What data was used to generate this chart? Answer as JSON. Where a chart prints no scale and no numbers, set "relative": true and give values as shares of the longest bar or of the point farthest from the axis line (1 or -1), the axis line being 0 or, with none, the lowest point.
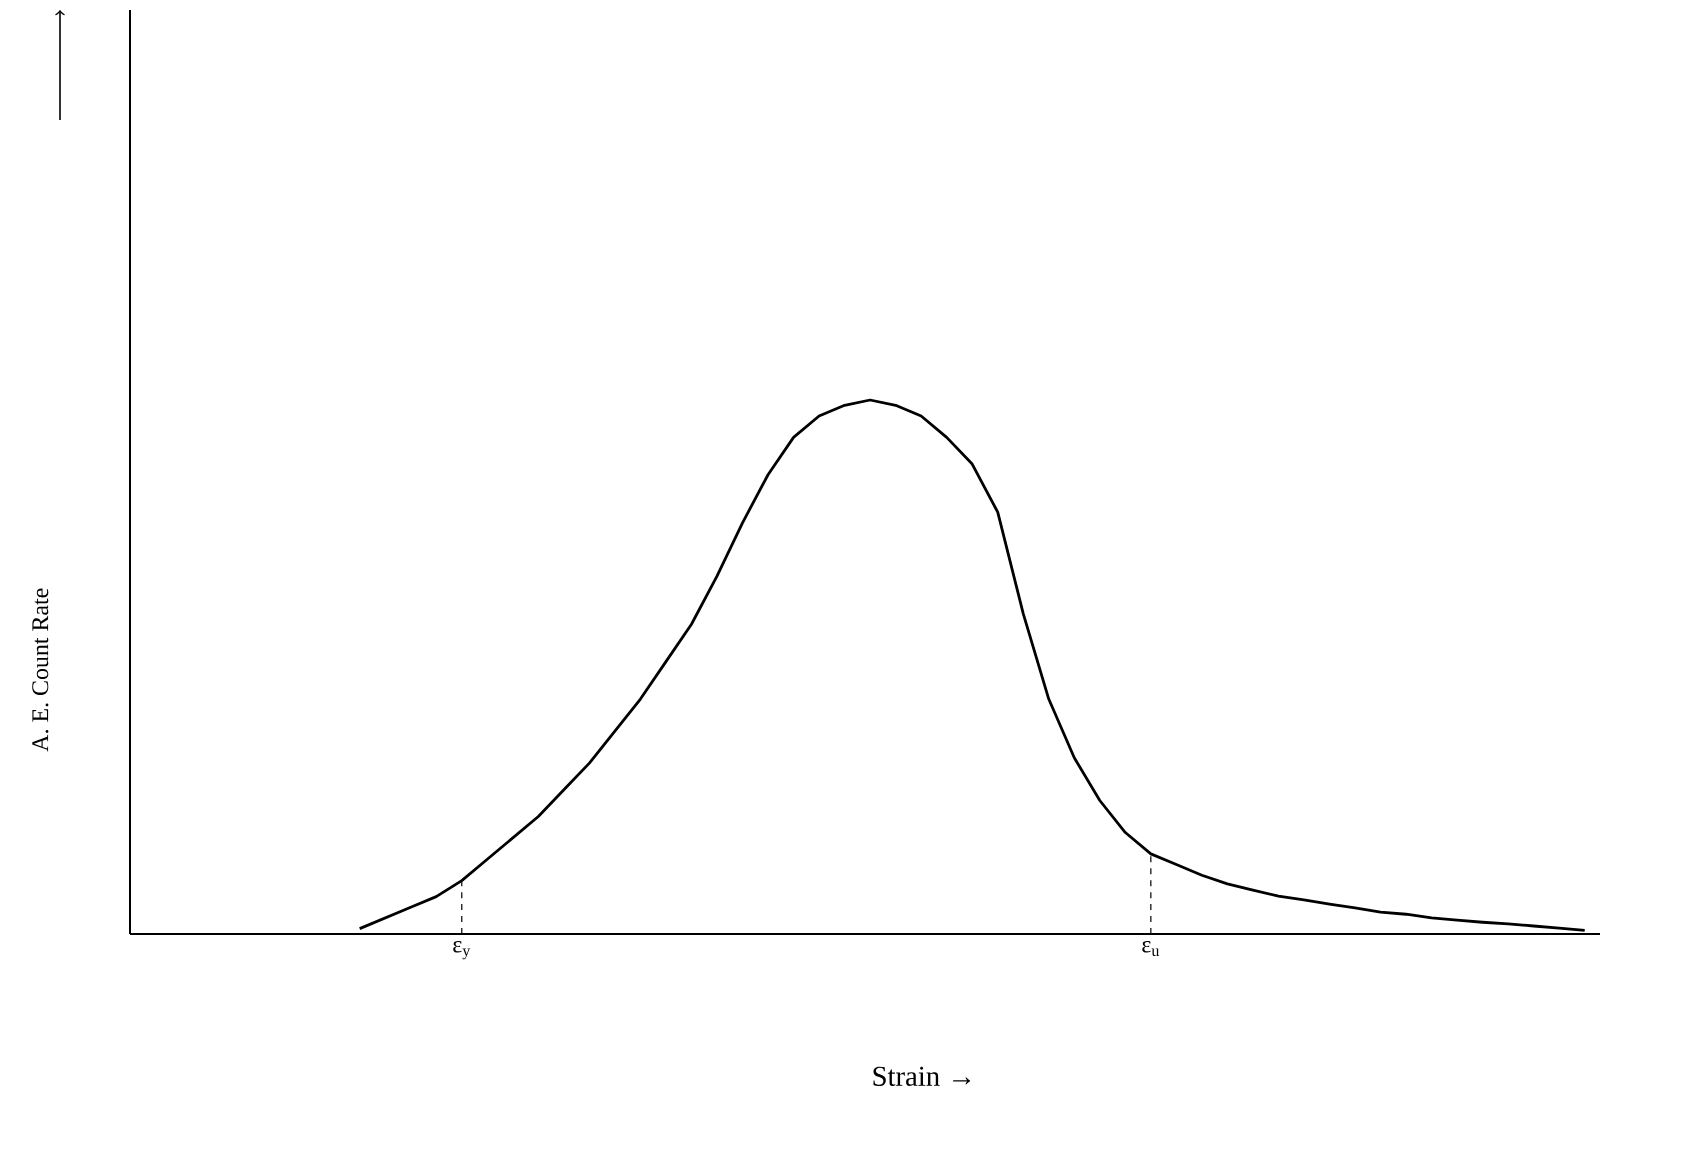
{
  "chart_data": {
    "type": "line",
    "xlabel": "Strain →",
    "ylabel": "A. E. Count Rate",
    "relative": true,
    "marker": "none",
    "line_style": "solid",
    "categories": [
      null,
      null,
      null,
      null,
      null,
      null,
      null,
      null,
      null,
      null,
      null,
      null,
      null,
      "ε$_{y}$",
      null,
      null,
      null,
      null,
      null,
      null,
      null,
      null,
      null,
      null,
      null,
      null,
      null,
      null,
      null,
      null,
      null,
      null,
      null,
      null,
      null,
      null,
      null,
      null,
      null,
      null,
      "ε$_{u}$",
      null,
      null,
      null,
      null,
      null,
      null,
      null,
      null,
      null,
      null,
      null,
      null,
      null,
      null,
      null,
      null,
      null
    ],
    "series": [
      {
        "color": "#000000",
        "values": [
          null,
          null,
          null,
          null,
          null,
          null,
          null,
          null,
          null,
          0.01,
          0.03,
          0.05,
          0.07,
          0.1,
          0.14,
          0.18,
          0.22,
          0.27,
          0.32,
          0.38,
          0.44,
          0.51,
          0.58,
          0.67,
          0.77,
          0.86,
          0.93,
          0.97,
          0.99,
          1.0,
          0.99,
          0.97,
          0.93,
          0.88,
          0.79,
          0.6,
          0.44,
          0.33,
          0.25,
          0.19,
          0.15,
          0.13,
          0.11,
          0.094,
          0.082,
          0.071,
          0.064,
          0.056,
          0.049,
          0.041,
          0.037,
          0.03,
          0.026,
          0.022,
          0.019,
          0.015,
          0.011,
          0.007
        ]
      }
    ],
    "ref_lines": [
      {
        "axis": "x",
        "value": "ε$_{y}$",
        "line_style": "dashed"
      },
      {
        "axis": "x",
        "value": "ε$_{u}$",
        "line_style": "dashed"
      }
    ]
  }
}
